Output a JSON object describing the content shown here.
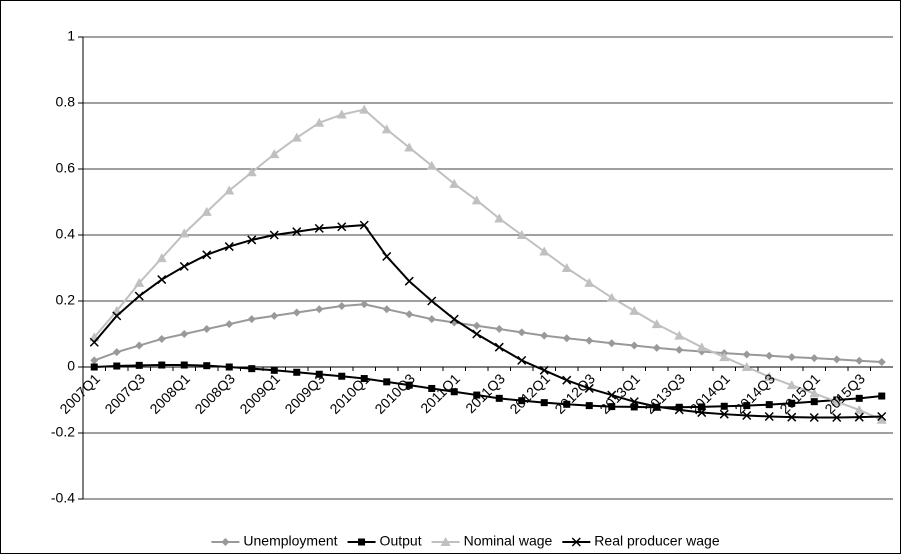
{
  "chart_data": {
    "type": "line",
    "categories": [
      "2007Q1",
      null,
      "2007Q3",
      null,
      "2008Q1",
      null,
      "2008Q3",
      null,
      "2009Q1",
      null,
      "2009Q3",
      null,
      "2010Q1",
      null,
      "2010Q3",
      null,
      "2011Q1",
      null,
      "2011Q3",
      null,
      "2012Q1",
      null,
      "2012Q3",
      null,
      "2013Q1",
      null,
      "2013Q3",
      null,
      "2014Q1",
      null,
      "2014Q3",
      null,
      "2015Q1",
      null,
      "2015Q3",
      null
    ],
    "series": [
      {
        "name": "Unemployment",
        "color": "#999999",
        "marker": "diamond",
        "values": [
          0.02,
          0.045,
          0.065,
          0.085,
          0.1,
          0.115,
          0.13,
          0.145,
          0.155,
          0.165,
          0.175,
          0.185,
          0.19,
          0.175,
          0.16,
          0.145,
          0.135,
          0.125,
          0.115,
          0.105,
          0.095,
          0.087,
          0.08,
          0.072,
          0.065,
          0.058,
          0.052,
          0.047,
          0.042,
          0.038,
          0.034,
          0.03,
          0.027,
          0.023,
          0.019,
          0.015
        ]
      },
      {
        "name": "Output",
        "color": "#000000",
        "marker": "square",
        "values": [
          0,
          0.003,
          0.005,
          0.006,
          0.006,
          0.004,
          0,
          -0.005,
          -0.01,
          -0.016,
          -0.022,
          -0.028,
          -0.035,
          -0.045,
          -0.055,
          -0.065,
          -0.075,
          -0.085,
          -0.095,
          -0.102,
          -0.108,
          -0.113,
          -0.117,
          -0.12,
          -0.121,
          -0.122,
          -0.122,
          -0.121,
          -0.119,
          -0.117,
          -0.114,
          -0.11,
          -0.105,
          -0.1,
          -0.095,
          -0.088
        ]
      },
      {
        "name": "Nominal wage",
        "color": "#c0c0c0",
        "marker": "triangle",
        "values": [
          0.09,
          0.17,
          0.255,
          0.33,
          0.405,
          0.47,
          0.535,
          0.59,
          0.645,
          0.695,
          0.74,
          0.765,
          0.78,
          0.72,
          0.665,
          0.61,
          0.555,
          0.505,
          0.45,
          0.4,
          0.35,
          0.3,
          0.255,
          0.21,
          0.17,
          0.13,
          0.095,
          0.06,
          0.03,
          0,
          -0.03,
          -0.055,
          -0.08,
          -0.105,
          -0.13,
          -0.16
        ]
      },
      {
        "name": "Real producer wage",
        "color": "#000000",
        "marker": "x",
        "values": [
          0.075,
          0.155,
          0.215,
          0.265,
          0.305,
          0.34,
          0.365,
          0.385,
          0.4,
          0.41,
          0.42,
          0.425,
          0.43,
          0.335,
          0.26,
          0.2,
          0.145,
          0.1,
          0.06,
          0.02,
          -0.01,
          -0.04,
          -0.065,
          -0.085,
          -0.105,
          -0.12,
          -0.13,
          -0.138,
          -0.143,
          -0.147,
          -0.15,
          -0.152,
          -0.153,
          -0.153,
          -0.152,
          -0.15
        ]
      }
    ],
    "ylim": [
      -0.4,
      1
    ],
    "yticks": [
      -0.4,
      -0.2,
      0,
      0.2,
      0.4,
      0.6,
      0.8,
      1
    ],
    "grid": true,
    "legend": "bottom"
  }
}
